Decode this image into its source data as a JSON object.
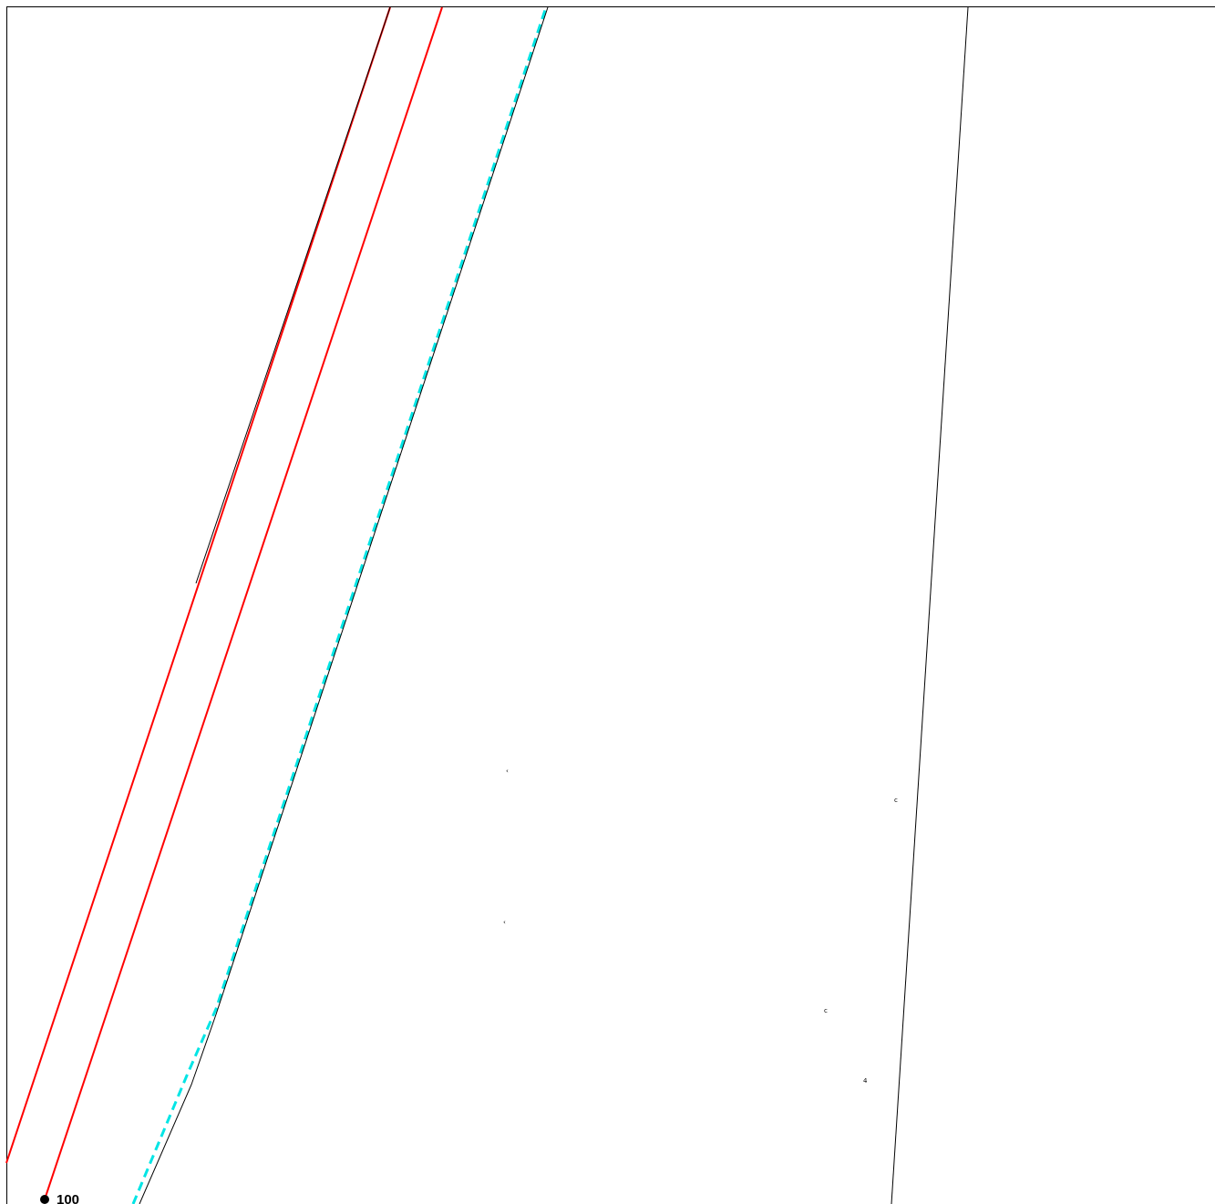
{
  "map": {
    "colors": {
      "background": "#ffffff",
      "frame": "#000000",
      "red_lines": "#ff0000",
      "dashed_line": "#00ffff",
      "black_lines": "#000000"
    },
    "symbols": {
      "survey_marker": "filled-circle-icon"
    },
    "labels": {
      "mark_a": "‹",
      "mark_b": "‹",
      "mark_c": "c",
      "mark_d": "c",
      "mark_e": "4",
      "point_label": "100"
    }
  }
}
